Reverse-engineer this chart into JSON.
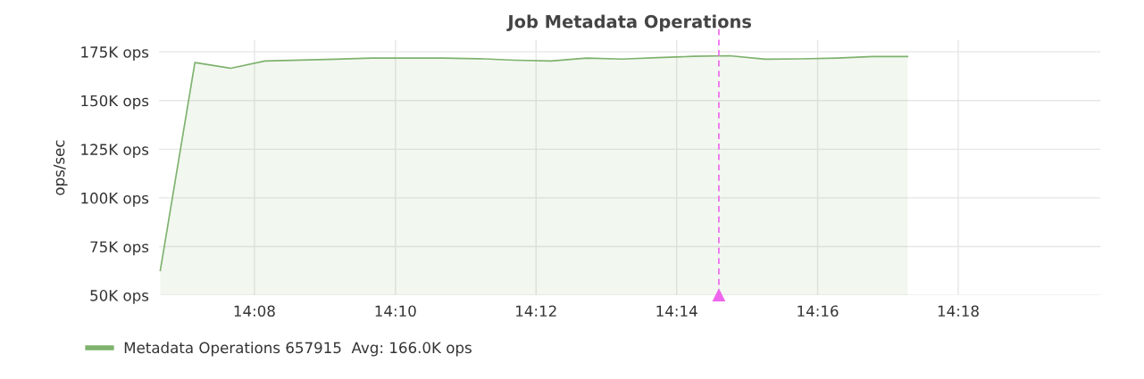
{
  "chart_data": {
    "type": "area",
    "title": "Job Metadata Operations",
    "ylabel": "ops/sec",
    "x": [
      14.111,
      14.1192,
      14.1277,
      14.1358,
      14.1443,
      14.1525,
      14.161,
      14.1695,
      14.178,
      14.1865,
      14.195,
      14.2035,
      14.212,
      14.2203,
      14.2288,
      14.2373,
      14.2458,
      14.2543,
      14.2628,
      14.2713,
      14.2798,
      14.288
    ],
    "series": [
      {
        "name": "Metadata Operations 657915  Avg: 166.0K ops",
        "color": "#7eb26d",
        "values": [
          62700,
          169500,
          166600,
          170300,
          170800,
          171200,
          171800,
          171800,
          171800,
          171500,
          170700,
          170300,
          171800,
          171300,
          172000,
          172700,
          173000,
          171200,
          171400,
          171800,
          172600,
          172600
        ]
      }
    ],
    "xlim": [
      14.1107,
      14.3337
    ],
    "xticks": [
      {
        "value": 14.1333,
        "label": "14:08"
      },
      {
        "value": 14.1667,
        "label": "14:10"
      },
      {
        "value": 14.2,
        "label": "14:12"
      },
      {
        "value": 14.2333,
        "label": "14:14"
      },
      {
        "value": 14.2667,
        "label": "14:16"
      },
      {
        "value": 14.3,
        "label": "14:18"
      }
    ],
    "ylim": [
      50000,
      181000
    ],
    "yticks": [
      {
        "value": 50000,
        "label": "50K ops"
      },
      {
        "value": 75000,
        "label": "75K ops"
      },
      {
        "value": 100000,
        "label": "100K ops"
      },
      {
        "value": 125000,
        "label": "125K ops"
      },
      {
        "value": 150000,
        "label": "150K ops"
      },
      {
        "value": 175000,
        "label": "175K ops"
      }
    ],
    "ref_lines": [
      {
        "axis": "x",
        "value": 14.2433,
        "color": "#ee66ee",
        "line_style": "dashed"
      }
    ],
    "grid": true,
    "legend": "bottom"
  }
}
